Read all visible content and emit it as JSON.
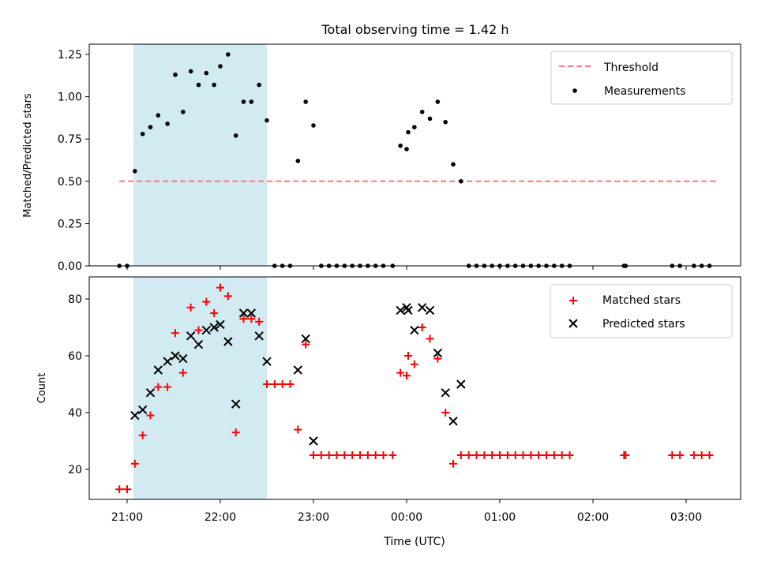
{
  "chart_data": [
    {
      "type": "scatter",
      "title": "Total observing time = 1.42 h",
      "ylabel": "Matched/Predicted stars",
      "xlabel": "",
      "x_axis": "time (UTC)",
      "ylim": [
        0,
        1.31
      ],
      "y_ticks": [
        "0.00",
        "0.25",
        "0.50",
        "0.75",
        "1.00",
        "1.25"
      ],
      "y_tick_values": [
        0,
        0.25,
        0.5,
        0.75,
        1.0,
        1.25
      ],
      "x_tick_values": [
        "21:00",
        "22:00",
        "23:00",
        "00:00",
        "01:00",
        "02:00",
        "03:00"
      ],
      "x_tick_labels_shown": false,
      "shaded_span": {
        "from": "21:04",
        "to": "22:30",
        "color": "#add8e6"
      },
      "legend": {
        "position": "top-right",
        "entries": [
          "Threshold",
          "Measurements"
        ]
      },
      "threshold": {
        "name": "Threshold",
        "y": 0.5,
        "from": "20:55",
        "to": "03:20",
        "color": "#ff7777",
        "style": "dashed"
      },
      "series": [
        {
          "name": "Measurements",
          "marker": "dot",
          "color": "#000000",
          "points": [
            [
              "20:55",
              0.0
            ],
            [
              "21:00",
              0.0
            ],
            [
              "21:05",
              0.56
            ],
            [
              "21:10",
              0.78
            ],
            [
              "21:15",
              0.82
            ],
            [
              "21:20",
              0.89
            ],
            [
              "21:26",
              0.84
            ],
            [
              "21:31",
              1.13
            ],
            [
              "21:36",
              0.91
            ],
            [
              "21:41",
              1.15
            ],
            [
              "21:46",
              1.07
            ],
            [
              "21:51",
              1.14
            ],
            [
              "21:56",
              1.07
            ],
            [
              "22:00",
              1.18
            ],
            [
              "22:05",
              1.25
            ],
            [
              "22:10",
              0.77
            ],
            [
              "22:15",
              0.97
            ],
            [
              "22:20",
              0.97
            ],
            [
              "22:25",
              1.07
            ],
            [
              "22:30",
              0.86
            ],
            [
              "22:35",
              0.0
            ],
            [
              "22:40",
              0.0
            ],
            [
              "22:45",
              0.0
            ],
            [
              "22:50",
              0.62
            ],
            [
              "22:55",
              0.97
            ],
            [
              "23:00",
              0.83
            ],
            [
              "23:05",
              0.0
            ],
            [
              "23:10",
              0.0
            ],
            [
              "23:15",
              0.0
            ],
            [
              "23:20",
              0.0
            ],
            [
              "23:25",
              0.0
            ],
            [
              "23:30",
              0.0
            ],
            [
              "23:35",
              0.0
            ],
            [
              "23:40",
              0.0
            ],
            [
              "23:45",
              0.0
            ],
            [
              "23:51",
              0.0
            ],
            [
              "23:56",
              0.71
            ],
            [
              "00:01",
              0.79
            ],
            [
              "00:00",
              0.69
            ],
            [
              "00:05",
              0.82
            ],
            [
              "00:10",
              0.91
            ],
            [
              "00:15",
              0.87
            ],
            [
              "00:20",
              0.97
            ],
            [
              "00:25",
              0.85
            ],
            [
              "00:30",
              0.6
            ],
            [
              "00:35",
              0.5
            ],
            [
              "00:40",
              0.0
            ],
            [
              "00:45",
              0.0
            ],
            [
              "00:50",
              0.0
            ],
            [
              "00:55",
              0.0
            ],
            [
              "01:00",
              0.0
            ],
            [
              "01:05",
              0.0
            ],
            [
              "01:10",
              0.0
            ],
            [
              "01:15",
              0.0
            ],
            [
              "01:20",
              0.0
            ],
            [
              "01:25",
              0.0
            ],
            [
              "01:30",
              0.0
            ],
            [
              "01:35",
              0.0
            ],
            [
              "01:40",
              0.0
            ],
            [
              "01:45",
              0.0
            ],
            [
              "02:20",
              0.0
            ],
            [
              "02:21",
              0.0
            ],
            [
              "02:51",
              0.0
            ],
            [
              "02:56",
              0.0
            ],
            [
              "03:05",
              0.0
            ],
            [
              "03:10",
              0.0
            ],
            [
              "03:15",
              0.0
            ]
          ]
        }
      ]
    },
    {
      "type": "scatter",
      "title": "",
      "ylabel": "Count",
      "xlabel": "Time (UTC)",
      "x_axis": "time (UTC)",
      "ylim": [
        9,
        88
      ],
      "y_ticks": [
        "20",
        "40",
        "60",
        "80"
      ],
      "y_tick_values": [
        20,
        40,
        60,
        80
      ],
      "x_ticks": [
        "21:00",
        "22:00",
        "23:00",
        "00:00",
        "01:00",
        "02:00",
        "03:00"
      ],
      "shaded_span": {
        "from": "21:04",
        "to": "22:30",
        "color": "#add8e6"
      },
      "legend": {
        "position": "top-right",
        "entries": [
          "Matched stars",
          "Predicted stars"
        ]
      },
      "series": [
        {
          "name": "Matched stars",
          "marker": "plus",
          "color": "#ff0000",
          "points": [
            [
              "20:55",
              13
            ],
            [
              "21:00",
              13
            ],
            [
              "21:05",
              22
            ],
            [
              "21:10",
              32
            ],
            [
              "21:15",
              39
            ],
            [
              "21:20",
              49
            ],
            [
              "21:26",
              49
            ],
            [
              "21:31",
              68
            ],
            [
              "21:36",
              54
            ],
            [
              "21:41",
              77
            ],
            [
              "21:46",
              69
            ],
            [
              "21:51",
              79
            ],
            [
              "21:56",
              75
            ],
            [
              "22:00",
              84
            ],
            [
              "22:05",
              81
            ],
            [
              "22:10",
              33
            ],
            [
              "22:15",
              73
            ],
            [
              "22:20",
              73
            ],
            [
              "22:25",
              72
            ],
            [
              "22:30",
              50
            ],
            [
              "22:35",
              50
            ],
            [
              "22:40",
              50
            ],
            [
              "22:45",
              50
            ],
            [
              "22:50",
              34
            ],
            [
              "22:55",
              64
            ],
            [
              "23:00",
              25
            ],
            [
              "23:05",
              25
            ],
            [
              "23:10",
              25
            ],
            [
              "23:15",
              25
            ],
            [
              "23:20",
              25
            ],
            [
              "23:25",
              25
            ],
            [
              "23:30",
              25
            ],
            [
              "23:35",
              25
            ],
            [
              "23:40",
              25
            ],
            [
              "23:45",
              25
            ],
            [
              "23:51",
              25
            ],
            [
              "23:56",
              54
            ],
            [
              "00:01",
              60
            ],
            [
              "00:00",
              53
            ],
            [
              "00:05",
              57
            ],
            [
              "00:10",
              70
            ],
            [
              "00:15",
              66
            ],
            [
              "00:20",
              59
            ],
            [
              "00:25",
              40
            ],
            [
              "00:30",
              22
            ],
            [
              "00:35",
              25
            ],
            [
              "00:40",
              25
            ],
            [
              "00:45",
              25
            ],
            [
              "00:50",
              25
            ],
            [
              "00:55",
              25
            ],
            [
              "01:00",
              25
            ],
            [
              "01:05",
              25
            ],
            [
              "01:10",
              25
            ],
            [
              "01:15",
              25
            ],
            [
              "01:20",
              25
            ],
            [
              "01:25",
              25
            ],
            [
              "01:30",
              25
            ],
            [
              "01:35",
              25
            ],
            [
              "01:40",
              25
            ],
            [
              "01:45",
              25
            ],
            [
              "02:20",
              25
            ],
            [
              "02:21",
              25
            ],
            [
              "02:51",
              25
            ],
            [
              "02:56",
              25
            ],
            [
              "03:05",
              25
            ],
            [
              "03:10",
              25
            ],
            [
              "03:15",
              25
            ]
          ]
        },
        {
          "name": "Predicted stars",
          "marker": "x",
          "color": "#000000",
          "points": [
            [
              "21:05",
              39
            ],
            [
              "21:10",
              41
            ],
            [
              "21:15",
              47
            ],
            [
              "21:20",
              55
            ],
            [
              "21:26",
              58
            ],
            [
              "21:31",
              60
            ],
            [
              "21:36",
              59
            ],
            [
              "21:41",
              67
            ],
            [
              "21:46",
              64
            ],
            [
              "21:51",
              69
            ],
            [
              "21:56",
              70
            ],
            [
              "22:00",
              71
            ],
            [
              "22:05",
              65
            ],
            [
              "22:10",
              43
            ],
            [
              "22:15",
              75
            ],
            [
              "22:20",
              75
            ],
            [
              "22:25",
              67
            ],
            [
              "22:30",
              58
            ],
            [
              "22:50",
              55
            ],
            [
              "22:55",
              66
            ],
            [
              "23:00",
              30
            ],
            [
              "23:56",
              76
            ],
            [
              "00:01",
              76
            ],
            [
              "00:00",
              77
            ],
            [
              "00:05",
              69
            ],
            [
              "00:10",
              77
            ],
            [
              "00:15",
              76
            ],
            [
              "00:20",
              61
            ],
            [
              "00:25",
              47
            ],
            [
              "00:30",
              37
            ],
            [
              "00:35",
              50
            ]
          ]
        }
      ]
    }
  ]
}
